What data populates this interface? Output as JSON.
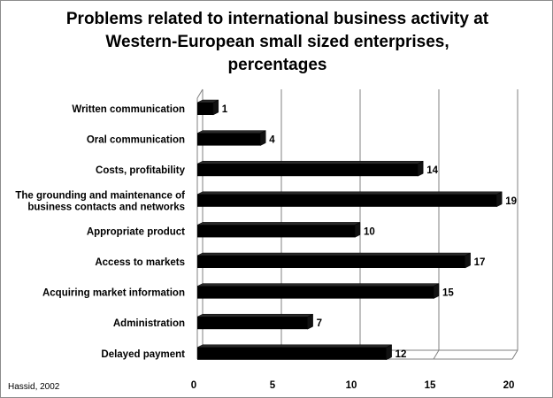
{
  "chart_data": {
    "type": "bar",
    "orientation": "horizontal",
    "title_lines": [
      "Problems related to international business activity at",
      "Western-European small sized enterprises,",
      "percentages"
    ],
    "categories": [
      "Written communication",
      "Oral communication",
      "Costs, profitability",
      "The grounding and maintenance of business contacts and networks",
      "Appropriate product",
      "Access to markets",
      "Acquiring market information",
      "Administration",
      "Delayed payment"
    ],
    "category_label_lines": [
      [
        "Written communication"
      ],
      [
        "Oral communication"
      ],
      [
        "Costs, profitability"
      ],
      [
        "The grounding and maintenance of",
        "business contacts and networks"
      ],
      [
        "Appropriate product"
      ],
      [
        "Access to markets"
      ],
      [
        "Acquiring market information"
      ],
      [
        "Administration"
      ],
      [
        "Delayed payment"
      ]
    ],
    "values": [
      1,
      4,
      14,
      19,
      10,
      17,
      15,
      7,
      12
    ],
    "xlim": [
      0,
      20
    ],
    "xticks": [
      0,
      5,
      10,
      15,
      20
    ],
    "grid": true,
    "bar_color": "#000000",
    "grid_color": "#808080",
    "source": "Hassid, 2002"
  }
}
